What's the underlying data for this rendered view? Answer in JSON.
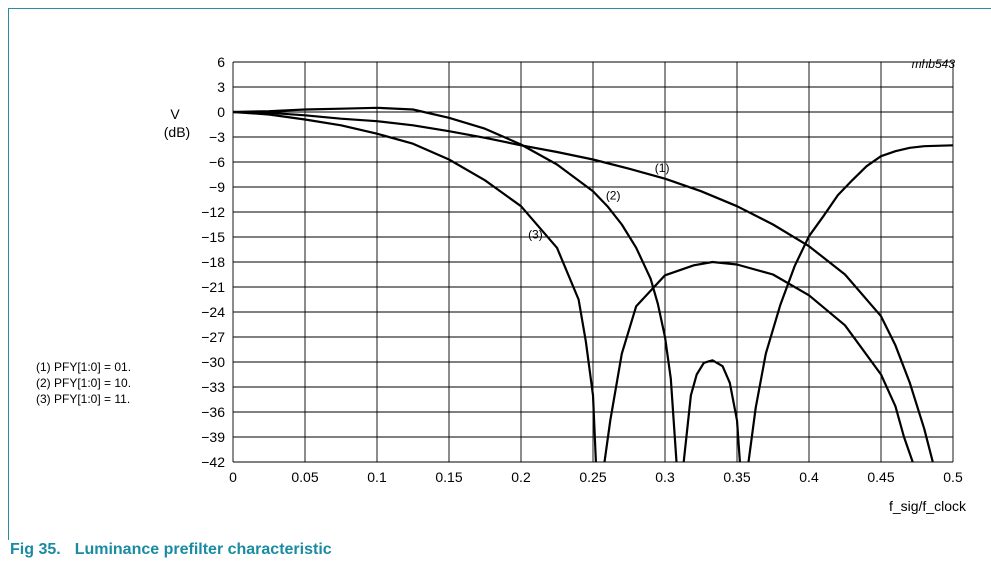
{
  "figure_id": "mhb543",
  "caption": {
    "number": "Fig 35.",
    "title": "Luminance prefilter characteristic"
  },
  "notes": [
    "(1) PFY[1:0] = 01.",
    "(2) PFY[1:0] = 10.",
    "(3) PFY[1:0] = 11."
  ],
  "chart_data": {
    "type": "line",
    "title": "",
    "xlabel": "f_sig/f_clock",
    "ylabel": [
      "V",
      "(dB)"
    ],
    "xlim": [
      0,
      0.5
    ],
    "ylim": [
      -42,
      6
    ],
    "xticks": [
      0,
      0.05,
      0.1,
      0.15,
      0.2,
      0.25,
      0.3,
      0.35,
      0.4,
      0.45,
      0.5
    ],
    "xtick_labels": [
      "0",
      "0.05",
      "0.1",
      "0.15",
      "0.2",
      "0.25",
      "0.3",
      "0.35",
      "0.4",
      "0.45",
      "0.5"
    ],
    "yticks": [
      6,
      3,
      0,
      -3,
      -6,
      -9,
      -12,
      -15,
      -18,
      -21,
      -24,
      -27,
      -30,
      -33,
      -36,
      -39,
      -42
    ],
    "ytick_labels": [
      "6",
      "3",
      "0",
      "−3",
      "−6",
      "−9",
      "−12",
      "−15",
      "−18",
      "−21",
      "−24",
      "−27",
      "−30",
      "−33",
      "−36",
      "−39",
      "−42"
    ],
    "grid": true,
    "series": [
      {
        "name": "(1)",
        "label_at": [
          0.298,
          -7.2
        ],
        "segments": [
          [
            [
              0,
              0
            ],
            [
              0.025,
              -0.1
            ],
            [
              0.05,
              -0.4
            ],
            [
              0.075,
              -0.8
            ],
            [
              0.1,
              -1.1
            ],
            [
              0.125,
              -1.6
            ],
            [
              0.15,
              -2.3
            ],
            [
              0.175,
              -3.1
            ],
            [
              0.2,
              -4.0
            ],
            [
              0.225,
              -4.8
            ],
            [
              0.25,
              -5.7
            ],
            [
              0.275,
              -6.8
            ],
            [
              0.3,
              -8.0
            ],
            [
              0.325,
              -9.5
            ],
            [
              0.35,
              -11.3
            ],
            [
              0.375,
              -13.5
            ],
            [
              0.4,
              -16.1
            ],
            [
              0.425,
              -19.5
            ],
            [
              0.45,
              -24.5
            ],
            [
              0.46,
              -28.0
            ],
            [
              0.47,
              -32.5
            ],
            [
              0.48,
              -38.0
            ],
            [
              0.486,
              -42.0
            ]
          ]
        ]
      },
      {
        "name": "(2)",
        "label_at": [
          0.264,
          -10.5
        ],
        "segments": [
          [
            [
              0,
              0
            ],
            [
              0.025,
              0.1
            ],
            [
              0.05,
              0.3
            ],
            [
              0.075,
              0.4
            ],
            [
              0.1,
              0.5
            ],
            [
              0.125,
              0.3
            ],
            [
              0.15,
              -0.7
            ],
            [
              0.175,
              -2.0
            ],
            [
              0.2,
              -3.9
            ],
            [
              0.225,
              -6.3
            ],
            [
              0.25,
              -9.5
            ],
            [
              0.26,
              -11.3
            ],
            [
              0.27,
              -13.5
            ],
            [
              0.28,
              -16.3
            ],
            [
              0.29,
              -20.0
            ],
            [
              0.295,
              -23.0
            ],
            [
              0.3,
              -27.0
            ],
            [
              0.304,
              -32.0
            ],
            [
              0.308,
              -42.0
            ]
          ],
          [
            [
              0.313,
              -42.0
            ],
            [
              0.318,
              -34.0
            ],
            [
              0.322,
              -31.5
            ],
            [
              0.327,
              -30.1
            ],
            [
              0.333,
              -29.8
            ],
            [
              0.34,
              -30.5
            ],
            [
              0.345,
              -32.5
            ],
            [
              0.35,
              -37.0
            ],
            [
              0.352,
              -42.0
            ]
          ],
          [
            [
              0.358,
              -42.0
            ],
            [
              0.363,
              -35.5
            ],
            [
              0.37,
              -29.0
            ],
            [
              0.38,
              -23.2
            ],
            [
              0.39,
              -18.5
            ],
            [
              0.4,
              -14.9
            ],
            [
              0.41,
              -12.5
            ],
            [
              0.42,
              -10.0
            ],
            [
              0.43,
              -8.2
            ],
            [
              0.44,
              -6.5
            ],
            [
              0.45,
              -5.3
            ],
            [
              0.46,
              -4.7
            ],
            [
              0.47,
              -4.3
            ],
            [
              0.48,
              -4.1
            ],
            [
              0.5,
              -4.0
            ]
          ]
        ]
      },
      {
        "name": "(3)",
        "label_at": [
          0.21,
          -15.2
        ],
        "segments": [
          [
            [
              0,
              0
            ],
            [
              0.025,
              -0.3
            ],
            [
              0.05,
              -0.9
            ],
            [
              0.075,
              -1.6
            ],
            [
              0.1,
              -2.6
            ],
            [
              0.125,
              -3.8
            ],
            [
              0.15,
              -5.7
            ],
            [
              0.175,
              -8.2
            ],
            [
              0.2,
              -11.3
            ],
            [
              0.225,
              -16.3
            ],
            [
              0.24,
              -22.5
            ],
            [
              0.245,
              -27.5
            ],
            [
              0.25,
              -34.0
            ],
            [
              0.252,
              -42.0
            ]
          ],
          [
            [
              0.258,
              -42.0
            ],
            [
              0.262,
              -37.0
            ],
            [
              0.27,
              -29.0
            ],
            [
              0.28,
              -23.3
            ],
            [
              0.3,
              -19.6
            ],
            [
              0.32,
              -18.4
            ],
            [
              0.333,
              -18.0
            ],
            [
              0.35,
              -18.3
            ],
            [
              0.375,
              -19.5
            ],
            [
              0.4,
              -22.0
            ],
            [
              0.425,
              -25.6
            ],
            [
              0.45,
              -31.5
            ],
            [
              0.46,
              -35.3
            ],
            [
              0.466,
              -39.0
            ],
            [
              0.472,
              -42.0
            ]
          ]
        ]
      }
    ]
  }
}
